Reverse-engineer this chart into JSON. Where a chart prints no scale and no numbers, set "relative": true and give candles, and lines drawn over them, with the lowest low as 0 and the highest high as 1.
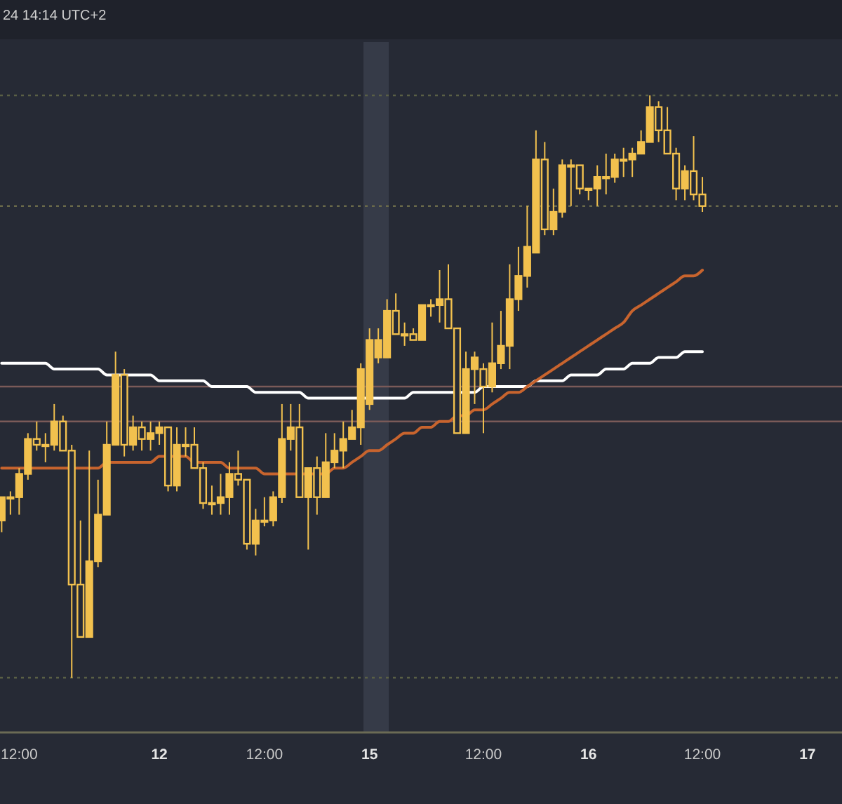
{
  "chart_data": {
    "type": "candlestick",
    "relative": true,
    "categories": [
      null,
      null,
      "12:00",
      null,
      null,
      null,
      null,
      null,
      null,
      null,
      null,
      null,
      null,
      null,
      null,
      null,
      null,
      null,
      "12",
      null,
      null,
      null,
      null,
      null,
      null,
      null,
      null,
      null,
      null,
      null,
      "12:00",
      null,
      null,
      null,
      null,
      null,
      null,
      null,
      null,
      null,
      null,
      null,
      "15",
      null,
      null,
      null,
      null,
      null,
      null,
      null,
      null,
      null,
      null,
      null,
      null,
      "12:00",
      null,
      null,
      null,
      null,
      null,
      null,
      null,
      null,
      null,
      null,
      null,
      "16",
      null,
      null,
      null,
      null,
      null,
      null,
      null,
      null,
      null,
      null,
      null,
      null,
      "12:00",
      null,
      null,
      null,
      null,
      null,
      null,
      null,
      null,
      null,
      null,
      null,
      "17"
    ],
    "annotations": [
      "24 14:14 UTC+2"
    ],
    "ref_lines": [
      {
        "axis": "y",
        "value": 1,
        "color": "#5a5f45",
        "line_style": "dotted"
      },
      {
        "axis": "y",
        "value": 0.81,
        "color": "#6a6a4a",
        "line_style": "dotted"
      },
      {
        "axis": "y",
        "value": 0.5,
        "color": "#7a5a58",
        "line_style": "solid"
      },
      {
        "axis": "y",
        "value": 0.44,
        "color": "#7a5a58",
        "line_style": "solid"
      },
      {
        "axis": "y",
        "value": 0,
        "color": "#5a5f45",
        "line_style": "dotted"
      }
    ],
    "series": [
      {
        "type": "line",
        "color": "#ffffff",
        "values": [
          0.54,
          0.54,
          0.54,
          0.54,
          0.54,
          0.54,
          0.53,
          0.53,
          0.53,
          0.53,
          0.53,
          0.53,
          0.52,
          0.52,
          0.52,
          0.52,
          0.52,
          0.52,
          0.51,
          0.51,
          0.51,
          0.51,
          0.51,
          0.51,
          0.5,
          0.5,
          0.5,
          0.5,
          0.5,
          0.49,
          0.49,
          0.49,
          0.49,
          0.49,
          0.49,
          0.48,
          0.48,
          0.48,
          0.48,
          0.48,
          0.48,
          0.48,
          0.48,
          0.48,
          0.48,
          0.48,
          0.48,
          0.49,
          0.49,
          0.49,
          0.49,
          0.49,
          0.49,
          0.49,
          0.49,
          0.5,
          0.5,
          0.5,
          0.5,
          0.5,
          0.5,
          0.51,
          0.51,
          0.51,
          0.51,
          0.52,
          0.52,
          0.52,
          0.52,
          0.53,
          0.53,
          0.53,
          0.54,
          0.54,
          0.54,
          0.55,
          0.55,
          0.55,
          0.56,
          0.56,
          0.56,
          null,
          null,
          null,
          null,
          null,
          null,
          null,
          null,
          null,
          null,
          null,
          null
        ]
      },
      {
        "type": "line",
        "color": "#c8642e",
        "values": [
          0.36,
          0.36,
          0.36,
          0.36,
          0.36,
          0.36,
          0.36,
          0.36,
          0.36,
          0.36,
          0.36,
          0.36,
          0.37,
          0.37,
          0.37,
          0.37,
          0.37,
          0.37,
          0.38,
          0.38,
          0.38,
          0.38,
          0.37,
          0.37,
          0.37,
          0.37,
          0.36,
          0.36,
          0.36,
          0.36,
          0.35,
          0.35,
          0.35,
          0.35,
          0.35,
          0.35,
          0.35,
          0.35,
          0.36,
          0.36,
          0.37,
          0.38,
          0.39,
          0.39,
          0.4,
          0.41,
          0.42,
          0.42,
          0.43,
          0.43,
          0.44,
          0.44,
          0.45,
          0.45,
          0.46,
          0.46,
          0.47,
          0.48,
          0.49,
          0.49,
          0.5,
          0.51,
          0.52,
          0.53,
          0.54,
          0.55,
          0.56,
          0.57,
          0.58,
          0.59,
          0.6,
          0.61,
          0.63,
          0.64,
          0.65,
          0.66,
          0.67,
          0.68,
          0.69,
          0.69,
          0.7,
          null,
          null,
          null,
          null,
          null,
          null,
          null,
          null,
          null,
          null,
          null,
          null
        ]
      },
      {
        "type": "candlestick",
        "color": "#f2c14e",
        "ohlc": [
          [
            0.27,
            0.31,
            0.25,
            0.31
          ],
          [
            0.31,
            0.32,
            0.28,
            0.31
          ],
          [
            0.31,
            0.36,
            0.28,
            0.35
          ],
          [
            0.35,
            0.42,
            0.34,
            0.41
          ],
          [
            0.41,
            0.44,
            0.39,
            0.4
          ],
          [
            0.4,
            0.42,
            0.37,
            0.4
          ],
          [
            0.4,
            0.47,
            0.39,
            0.44
          ],
          [
            0.44,
            0.45,
            0.39,
            0.39
          ],
          [
            0.39,
            0.4,
            0,
            0.16
          ],
          [
            0.16,
            0.27,
            0.07,
            0.07
          ],
          [
            0.07,
            0.39,
            0.07,
            0.2
          ],
          [
            0.2,
            0.34,
            0.19,
            0.28
          ],
          [
            0.28,
            0.44,
            0.28,
            0.4
          ],
          [
            0.4,
            0.56,
            0.4,
            0.52
          ],
          [
            0.52,
            0.53,
            0.38,
            0.4
          ],
          [
            0.4,
            0.45,
            0.39,
            0.43
          ],
          [
            0.43,
            0.44,
            0.39,
            0.41
          ],
          [
            0.41,
            0.44,
            0.39,
            0.42
          ],
          [
            0.42,
            0.44,
            0.4,
            0.43
          ],
          [
            0.43,
            0.43,
            0.32,
            0.33
          ],
          [
            0.33,
            0.43,
            0.32,
            0.4
          ],
          [
            0.4,
            0.43,
            0.38,
            0.4
          ],
          [
            0.4,
            0.43,
            0.36,
            0.36
          ],
          [
            0.36,
            0.37,
            0.29,
            0.3
          ],
          [
            0.3,
            0.33,
            0.28,
            0.3
          ],
          [
            0.3,
            0.35,
            0.28,
            0.31
          ],
          [
            0.31,
            0.37,
            0.28,
            0.35
          ],
          [
            0.35,
            0.39,
            0.33,
            0.34
          ],
          [
            0.34,
            0.34,
            0.22,
            0.23
          ],
          [
            0.23,
            0.29,
            0.21,
            0.27
          ],
          [
            0.27,
            0.31,
            0.26,
            0.27
          ],
          [
            0.27,
            0.32,
            0.26,
            0.31
          ],
          [
            0.31,
            0.47,
            0.3,
            0.41
          ],
          [
            0.41,
            0.47,
            0.39,
            0.43
          ],
          [
            0.43,
            0.47,
            0.31,
            0.31
          ],
          [
            0.31,
            0.36,
            0.22,
            0.36
          ],
          [
            0.36,
            0.38,
            0.28,
            0.31
          ],
          [
            0.31,
            0.42,
            0.31,
            0.37
          ],
          [
            0.37,
            0.42,
            0.36,
            0.39
          ],
          [
            0.39,
            0.44,
            0.36,
            0.41
          ],
          [
            0.41,
            0.46,
            0.41,
            0.43
          ],
          [
            0.43,
            0.54,
            0.4,
            0.53
          ],
          [
            0.47,
            0.6,
            0.46,
            0.58
          ],
          [
            0.55,
            0.6,
            0.54,
            0.58
          ],
          [
            0.55,
            0.65,
            0.55,
            0.63
          ],
          [
            0.63,
            0.66,
            0.59,
            0.59
          ],
          [
            0.59,
            0.61,
            0.57,
            0.59
          ],
          [
            0.59,
            0.6,
            0.58,
            0.58
          ],
          [
            0.58,
            0.64,
            0.58,
            0.64
          ],
          [
            0.64,
            0.65,
            0.62,
            0.64
          ],
          [
            0.64,
            0.7,
            0.61,
            0.65
          ],
          [
            0.65,
            0.71,
            0.6,
            0.6
          ],
          [
            0.6,
            0.6,
            0.42,
            0.42
          ],
          [
            0.42,
            0.56,
            0.42,
            0.53
          ],
          [
            0.53,
            0.56,
            0.47,
            0.55
          ],
          [
            0.53,
            0.54,
            0.42,
            0.5
          ],
          [
            0.5,
            0.61,
            0.49,
            0.54
          ],
          [
            0.54,
            0.63,
            0.53,
            0.57
          ],
          [
            0.57,
            0.71,
            0.53,
            0.65
          ],
          [
            0.65,
            0.74,
            0.63,
            0.69
          ],
          [
            0.69,
            0.81,
            0.67,
            0.74
          ],
          [
            0.73,
            0.94,
            0.73,
            0.89
          ],
          [
            0.89,
            0.92,
            0.76,
            0.77
          ],
          [
            0.77,
            0.84,
            0.76,
            0.8
          ],
          [
            0.8,
            0.89,
            0.79,
            0.88
          ],
          [
            0.88,
            0.89,
            0.81,
            0.88
          ],
          [
            0.88,
            0.88,
            0.83,
            0.84
          ],
          [
            0.84,
            0.84,
            0.82,
            0.84
          ],
          [
            0.84,
            0.88,
            0.81,
            0.86
          ],
          [
            0.86,
            0.9,
            0.83,
            0.86
          ],
          [
            0.86,
            0.9,
            0.85,
            0.89
          ],
          [
            0.89,
            0.91,
            0.86,
            0.89
          ],
          [
            0.89,
            0.91,
            0.86,
            0.9
          ],
          [
            0.9,
            0.94,
            0.9,
            0.92
          ],
          [
            0.92,
            1,
            0.92,
            0.98
          ],
          [
            0.98,
            0.99,
            0.92,
            0.94
          ],
          [
            0.94,
            0.98,
            0.9,
            0.9
          ],
          [
            0.9,
            0.91,
            0.82,
            0.84
          ],
          [
            0.84,
            0.88,
            0.82,
            0.87
          ],
          [
            0.87,
            0.93,
            0.82,
            0.83
          ],
          [
            0.83,
            0.86,
            0.8,
            0.81
          ],
          null,
          null,
          null,
          null,
          null,
          null,
          null,
          null,
          null,
          null,
          null,
          null
        ]
      }
    ]
  }
}
